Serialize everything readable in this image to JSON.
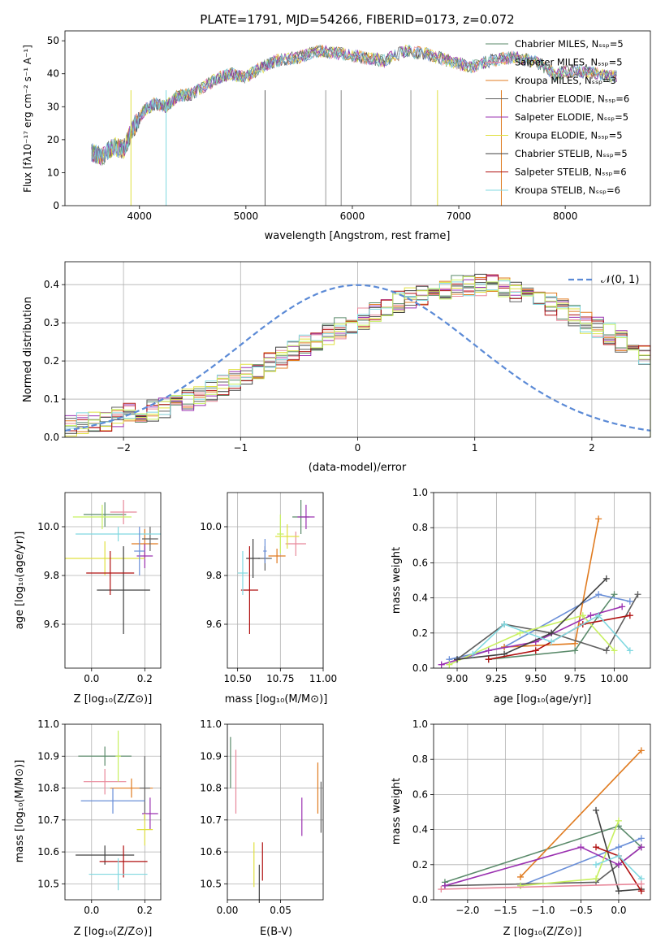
{
  "colors": [
    "#5a8a6a",
    "#e8889a",
    "#e07b20",
    "#606060",
    "#9a30b0",
    "#e0e040",
    "#404040",
    "#b01010",
    "#80d8e0",
    "#6a8fd8",
    "#c8f060"
  ],
  "chart_data": [
    {
      "type": "line",
      "title": "PLATE=1791, MJD=54266, FIBERID=0173, z=0.072",
      "xlabel": "wavelength [Angstrom, rest frame]",
      "ylabel": "Flux [fλ10⁻¹⁷ erg cm⁻² s⁻¹ A⁻¹]",
      "xlim": [
        3300,
        8800
      ],
      "ylim": [
        0,
        53
      ],
      "xticks": [
        4000,
        5000,
        6000,
        7000,
        8000
      ],
      "yticks": [
        0,
        10,
        20,
        30,
        40,
        50
      ],
      "legend_position": "top-right",
      "legend": [
        "Chabrier MILES, N_SSP=5",
        "Salpeter MILES, N_SSP=5",
        "Kroupa MILES, N_SSP=3",
        "Chabrier ELODIE, N_SSP=6",
        "Salpeter ELODIE, N_SSP=5",
        "Kroupa ELODIE, N_SSP=5",
        "Chabrier STELIB, N_SSP=5",
        "Salpeter STELIB, N_SSP=6",
        "Kroupa STELIB, N_SSP=6"
      ],
      "x": [
        3550,
        3650,
        3750,
        3850,
        3950,
        4050,
        4150,
        4250,
        4350,
        4500,
        4700,
        4850,
        5000,
        5150,
        5300,
        5500,
        5700,
        5900,
        6100,
        6300,
        6500,
        6700,
        6900,
        7100,
        7300,
        7500,
        7700,
        7900,
        8100,
        8300,
        8500
      ],
      "y": [
        16,
        15,
        18,
        17,
        24,
        29,
        31,
        30,
        33,
        34,
        38,
        40,
        39,
        42,
        44,
        45,
        47,
        46,
        45,
        44,
        47,
        46,
        44,
        42,
        44,
        45,
        44,
        40,
        41,
        40,
        39
      ]
    },
    {
      "type": "bar",
      "xlabel": "(data-model)/error",
      "ylabel": "Normed distribution",
      "xlim": [
        -2.5,
        2.5
      ],
      "ylim": [
        0,
        0.46
      ],
      "xticks": [
        -2,
        -1,
        0,
        1,
        2
      ],
      "yticks": [
        0.0,
        0.1,
        0.2,
        0.3,
        0.4
      ],
      "legend": [
        "𝒩(0, 1)"
      ],
      "legend_position": "top-right",
      "bin_width": 0.1,
      "bin_start": -2.5,
      "values": [
        0.03,
        0.035,
        0.04,
        0.045,
        0.055,
        0.06,
        0.065,
        0.07,
        0.08,
        0.09,
        0.1,
        0.11,
        0.12,
        0.135,
        0.15,
        0.165,
        0.18,
        0.195,
        0.21,
        0.225,
        0.24,
        0.255,
        0.27,
        0.285,
        0.3,
        0.31,
        0.325,
        0.34,
        0.355,
        0.365,
        0.375,
        0.385,
        0.39,
        0.395,
        0.398,
        0.4,
        0.398,
        0.39,
        0.385,
        0.375,
        0.36,
        0.35,
        0.335,
        0.32,
        0.3,
        0.285,
        0.27,
        0.25,
        0.235,
        0.22
      ]
    },
    {
      "type": "scatter",
      "xlabel": "Z [log₁₀(Z/Z⊙)]",
      "ylabel": "age  [log₁₀(age/yr)]",
      "xlim": [
        -0.1,
        0.26
      ],
      "ylim": [
        9.42,
        10.14
      ],
      "xticks": [
        0.0,
        0.2
      ],
      "yticks": [
        9.6,
        9.8,
        10.0
      ],
      "points": [
        [
          0.05,
          10.05,
          0.08,
          0.05
        ],
        [
          0.12,
          10.06,
          0.05,
          0.05
        ],
        [
          0.2,
          9.93,
          0.05,
          0.06
        ],
        [
          0.22,
          9.95,
          0.03,
          0.05
        ],
        [
          0.2,
          9.88,
          0.03,
          0.05
        ],
        [
          0.05,
          9.87,
          0.15,
          0.07
        ],
        [
          0.12,
          9.74,
          0.1,
          0.18
        ],
        [
          0.07,
          9.81,
          0.09,
          0.09
        ],
        [
          0.1,
          9.97,
          0.16,
          0.03
        ],
        [
          0.18,
          9.9,
          0.02,
          0.1
        ],
        [
          0.04,
          10.04,
          0.11,
          0.05
        ]
      ]
    },
    {
      "type": "scatter",
      "xlabel": "mass [log₁₀(M/M⊙)]",
      "ylabel": "",
      "xlim": [
        10.44,
        11.0
      ],
      "ylim": [
        9.42,
        10.14
      ],
      "xticks": [
        10.5,
        10.75,
        11.0
      ],
      "yticks": [
        9.6,
        9.8,
        10.0
      ],
      "points": [
        [
          10.87,
          10.04,
          0.05,
          0.07
        ],
        [
          10.84,
          9.93,
          0.06,
          0.05
        ],
        [
          10.73,
          9.88,
          0.05,
          0.03
        ],
        [
          10.66,
          9.87,
          0.04,
          0.05
        ],
        [
          10.9,
          10.04,
          0.05,
          0.05
        ],
        [
          10.79,
          9.96,
          0.07,
          0.05
        ],
        [
          10.59,
          9.87,
          0.04,
          0.08
        ],
        [
          10.57,
          9.74,
          0.05,
          0.18
        ],
        [
          10.53,
          9.81,
          0.03,
          0.09
        ],
        [
          10.66,
          9.9,
          0.01,
          0.05
        ],
        [
          10.75,
          9.97,
          0.02,
          0.08
        ]
      ]
    },
    {
      "type": "line",
      "xlabel": "age  [log₁₀(age/yr)]",
      "ylabel": "mass weight",
      "xlim": [
        8.85,
        10.23
      ],
      "ylim": [
        0,
        1.0
      ],
      "xticks": [
        9.0,
        9.25,
        9.5,
        9.75,
        10.0
      ],
      "yticks": [
        0.0,
        0.2,
        0.4,
        0.6,
        0.8,
        1.0
      ],
      "series": [
        {
          "ages": [
            9.2,
            9.75,
            9.9,
            10.0
          ],
          "weights": [
            0.05,
            0.1,
            0.3,
            0.42
          ]
        },
        {
          "ages": [
            8.95,
            9.3,
            9.9,
            10.1
          ],
          "weights": [
            0.05,
            0.12,
            0.42,
            0.38
          ]
        },
        {
          "ages": [
            9.3,
            9.75,
            9.9
          ],
          "weights": [
            0.12,
            0.14,
            0.85
          ]
        },
        {
          "ages": [
            9.0,
            9.3,
            9.6,
            9.95,
            10.15
          ],
          "weights": [
            0.05,
            0.25,
            0.2,
            0.1,
            0.42
          ]
        },
        {
          "ages": [
            8.9,
            9.2,
            9.5,
            9.85,
            10.05
          ],
          "weights": [
            0.02,
            0.1,
            0.15,
            0.3,
            0.35
          ]
        },
        {
          "ages": [
            8.95,
            9.4,
            9.8,
            10.0
          ],
          "weights": [
            0.02,
            0.2,
            0.3,
            0.1
          ]
        },
        {
          "ages": [
            9.0,
            9.3,
            9.6,
            9.95
          ],
          "weights": [
            0.05,
            0.08,
            0.2,
            0.51
          ]
        },
        {
          "ages": [
            9.2,
            9.5,
            9.8,
            10.1
          ],
          "weights": [
            0.05,
            0.1,
            0.25,
            0.3
          ]
        },
        {
          "ages": [
            9.1,
            9.3,
            9.6,
            9.9,
            10.1
          ],
          "weights": [
            0.08,
            0.25,
            0.15,
            0.3,
            0.1
          ]
        }
      ]
    },
    {
      "type": "scatter",
      "xlabel": "Z [log₁₀(Z/Z⊙)]",
      "ylabel": "mass [log₁₀(M/M⊙)]",
      "xlim": [
        -0.1,
        0.26
      ],
      "ylim": [
        10.45,
        11.0
      ],
      "xticks": [
        0.0,
        0.2
      ],
      "yticks": [
        10.5,
        10.6,
        10.7,
        10.8,
        10.9,
        11.0
      ],
      "points": [
        [
          0.05,
          10.9,
          0.1,
          0.03
        ],
        [
          0.05,
          10.82,
          0.08,
          0.04
        ],
        [
          0.15,
          10.8,
          0.08,
          0.03
        ],
        [
          0.2,
          10.8,
          0.02,
          0.1
        ],
        [
          0.22,
          10.72,
          0.03,
          0.05
        ],
        [
          0.2,
          10.67,
          0.03,
          0.05
        ],
        [
          0.05,
          10.59,
          0.11,
          0.03
        ],
        [
          0.12,
          10.57,
          0.09,
          0.05
        ],
        [
          0.1,
          10.53,
          0.11,
          0.05
        ],
        [
          0.08,
          10.76,
          0.12,
          0.04
        ],
        [
          0.1,
          10.9,
          0.01,
          0.08
        ]
      ]
    },
    {
      "type": "scatter",
      "xlabel": "E(B-V)",
      "ylabel": "",
      "xlim": [
        0.0,
        0.09
      ],
      "ylim": [
        10.45,
        11.0
      ],
      "xticks": [
        0.0,
        0.05
      ],
      "yticks": [
        10.5,
        10.6,
        10.7,
        10.8,
        10.9,
        11.0
      ],
      "points": [
        [
          0.003,
          10.88,
          0,
          0.08
        ],
        [
          0.008,
          10.82,
          0,
          0.1
        ],
        [
          0.085,
          10.8,
          0,
          0.08
        ],
        [
          0.088,
          10.74,
          0,
          0.08
        ],
        [
          0.07,
          10.71,
          0,
          0.06
        ],
        [
          0.025,
          10.56,
          0,
          0.07
        ],
        [
          0.03,
          10.5,
          0,
          0.06
        ],
        [
          0.033,
          10.57,
          0,
          0.06
        ]
      ]
    },
    {
      "type": "line",
      "xlabel": "Z [log₁₀(Z/Z⊙)]",
      "ylabel": "mass weight",
      "xlim": [
        -2.45,
        0.42
      ],
      "ylim": [
        0,
        1.0
      ],
      "xticks": [
        -2.0,
        -1.5,
        -1.0,
        -0.5,
        0.0
      ],
      "yticks": [
        0.0,
        0.2,
        0.4,
        0.6,
        0.8,
        1.0
      ],
      "series": [
        {
          "z": [
            -2.3,
            0.0,
            0.3
          ],
          "weights": [
            0.1,
            0.42,
            0.3
          ]
        },
        {
          "z": [
            -1.3,
            0.0,
            0.3
          ],
          "weights": [
            0.08,
            0.3,
            0.35
          ]
        },
        {
          "z": [
            -1.3,
            0.3
          ],
          "weights": [
            0.13,
            0.85
          ]
        },
        {
          "z": [
            -2.3,
            -0.3,
            0.0,
            0.3
          ],
          "weights": [
            0.08,
            0.1,
            0.2,
            0.3
          ]
        },
        {
          "z": [
            -2.3,
            -0.5,
            0.0,
            0.3
          ],
          "weights": [
            0.08,
            0.3,
            0.2,
            0.3
          ]
        },
        {
          "z": [
            -1.3,
            -0.3,
            0.0
          ],
          "weights": [
            0.08,
            0.12,
            0.45
          ]
        },
        {
          "z": [
            -0.3,
            0.0,
            0.3
          ],
          "weights": [
            0.51,
            0.05,
            0.06
          ]
        },
        {
          "z": [
            -0.3,
            0.0,
            0.3
          ],
          "weights": [
            0.3,
            0.25,
            0.05
          ]
        },
        {
          "z": [
            -0.3,
            0.0,
            0.3
          ],
          "weights": [
            0.2,
            0.25,
            0.12
          ]
        },
        {
          "z": [
            -2.35,
            0.3
          ],
          "weights": [
            0.06,
            0.09
          ]
        }
      ]
    }
  ]
}
